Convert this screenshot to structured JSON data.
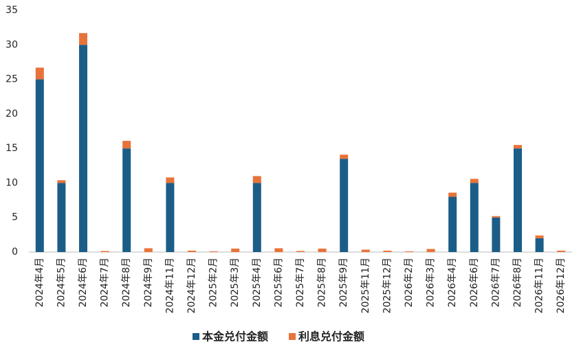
{
  "chart_data": {
    "type": "stacked_bar",
    "categories": [
      "2024年4月",
      "2024年5月",
      "2024年6月",
      "2024年7月",
      "2024年8月",
      "2024年9月",
      "2024年11月",
      "2024年12月",
      "2025年2月",
      "2025年3月",
      "2025年4月",
      "2025年6月",
      "2025年7月",
      "2025年8月",
      "2025年9月",
      "2025年11月",
      "2025年12月",
      "2026年2月",
      "2026年3月",
      "2026年4月",
      "2026年6月",
      "2026年7月",
      "2026年8月",
      "2026年11月",
      "2026年12月"
    ],
    "series": [
      {
        "name": "本金兑付金额",
        "color": "#1b5d87",
        "values": [
          25,
          10,
          30,
          0,
          15,
          0,
          10,
          0,
          0,
          0,
          10,
          0,
          0,
          0,
          13.5,
          0,
          0,
          0,
          0,
          8,
          10,
          5,
          15,
          2,
          0
        ]
      },
      {
        "name": "利息兑付金额",
        "color": "#e8733a",
        "values": [
          1.7,
          0.4,
          1.7,
          0.15,
          1.1,
          0.55,
          0.8,
          0.2,
          0.1,
          0.5,
          1.0,
          0.55,
          0.15,
          0.5,
          0.6,
          0.35,
          0.2,
          0.1,
          0.45,
          0.6,
          0.6,
          0.2,
          0.5,
          0.4,
          0.2
        ]
      }
    ],
    "ylim": [
      0,
      35
    ],
    "yticks": [
      0,
      5,
      10,
      15,
      20,
      25,
      30,
      35
    ],
    "grid": false,
    "legend": "bottom"
  }
}
